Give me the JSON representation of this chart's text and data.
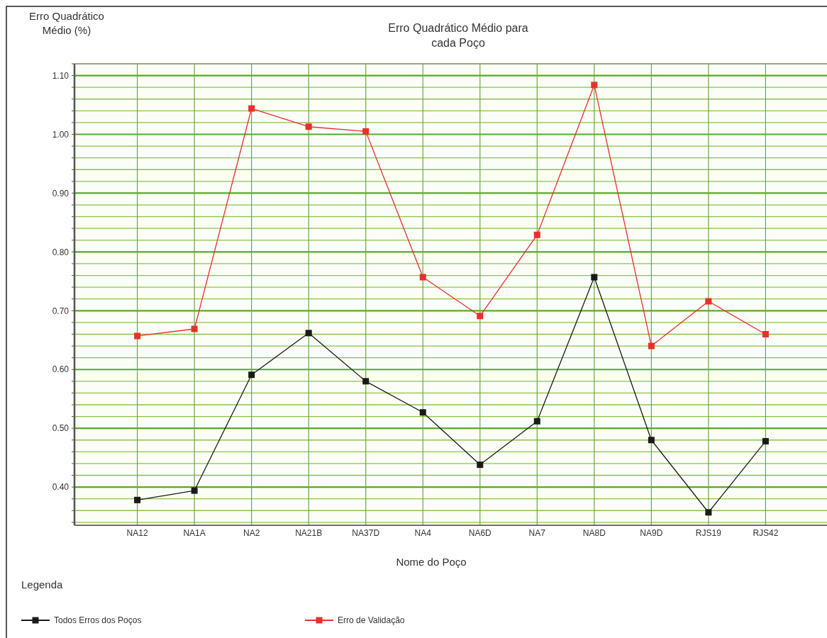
{
  "chart_data": {
    "type": "line",
    "title": "Erro Quadrático Médio para\ncada Poço",
    "xlabel": "Nome do Poço",
    "ylabel": "Erro Quadrático\nMédio (%)",
    "legend_title": "Legenda",
    "categories": [
      "NA12",
      "NA1A",
      "NA2",
      "NA21B",
      "NA37D",
      "NA4",
      "NA6D",
      "NA7",
      "NA8D",
      "NA9D",
      "RJS19",
      "RJS42"
    ],
    "series": [
      {
        "name": "Todos Erros dos Poços",
        "color": "#1a1a1a",
        "values": [
          0.378,
          0.394,
          0.591,
          0.662,
          0.58,
          0.527,
          0.438,
          0.512,
          0.757,
          0.48,
          0.357,
          0.478
        ]
      },
      {
        "name": "Erro de Validação",
        "color": "#e8302a",
        "values": [
          0.657,
          0.669,
          1.044,
          1.013,
          1.005,
          0.757,
          0.691,
          0.829,
          1.084,
          0.64,
          0.716,
          0.66
        ]
      }
    ],
    "ylim": [
      0.335,
      1.12
    ],
    "yticks": [
      {
        "value": 0.34,
        "label": null
      },
      {
        "value": 0.36,
        "label": null
      },
      {
        "value": 0.38,
        "label": null
      },
      {
        "value": 0.4,
        "label": "0.40"
      },
      {
        "value": 0.42,
        "label": null
      },
      {
        "value": 0.44,
        "label": null
      },
      {
        "value": 0.46,
        "label": null
      },
      {
        "value": 0.48,
        "label": null
      },
      {
        "value": 0.5,
        "label": "0.50"
      },
      {
        "value": 0.52,
        "label": null
      },
      {
        "value": 0.54,
        "label": null
      },
      {
        "value": 0.56,
        "label": null
      },
      {
        "value": 0.58,
        "label": null
      },
      {
        "value": 0.6,
        "label": "0.60"
      },
      {
        "value": 0.62,
        "label": null
      },
      {
        "value": 0.64,
        "label": null
      },
      {
        "value": 0.66,
        "label": null
      },
      {
        "value": 0.68,
        "label": null
      },
      {
        "value": 0.7,
        "label": "0.70"
      },
      {
        "value": 0.72,
        "label": null
      },
      {
        "value": 0.74,
        "label": null
      },
      {
        "value": 0.76,
        "label": null
      },
      {
        "value": 0.78,
        "label": null
      },
      {
        "value": 0.8,
        "label": "0.80"
      },
      {
        "value": 0.82,
        "label": null
      },
      {
        "value": 0.84,
        "label": null
      },
      {
        "value": 0.86,
        "label": null
      },
      {
        "value": 0.88,
        "label": null
      },
      {
        "value": 0.9,
        "label": "0.90"
      },
      {
        "value": 0.92,
        "label": null
      },
      {
        "value": 0.94,
        "label": null
      },
      {
        "value": 0.96,
        "label": null
      },
      {
        "value": 0.98,
        "label": null
      },
      {
        "value": 1.0,
        "label": "1.00"
      },
      {
        "value": 1.02,
        "label": null
      },
      {
        "value": 1.04,
        "label": null
      },
      {
        "value": 1.06,
        "label": null
      },
      {
        "value": 1.08,
        "label": null
      },
      {
        "value": 1.1,
        "label": "1.10"
      },
      {
        "value": 1.12,
        "label": null
      }
    ],
    "grid": true,
    "legend": "bottom left",
    "marker": "square",
    "line_style": "solid"
  }
}
